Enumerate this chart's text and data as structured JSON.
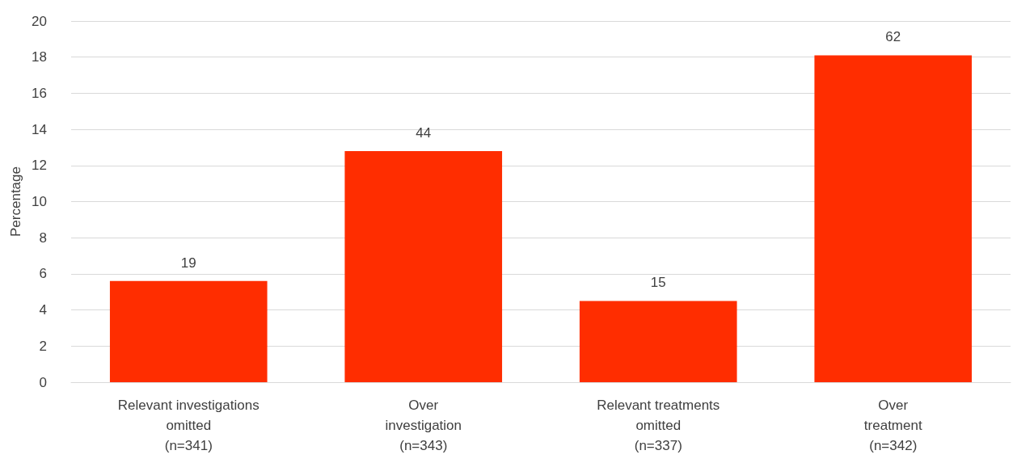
{
  "chart_data": {
    "type": "bar",
    "ylabel": "Percentage",
    "categories": [
      "Relevant investigations\nomitted\n(n=341)",
      "Over\ninvestigation\n(n=343)",
      "Relevant treatments\nomitted\n(n=337)",
      "Over\ntreatment\n(n=342)"
    ],
    "values": [
      5.6,
      12.8,
      4.5,
      18.1
    ],
    "color": "#ff2d00",
    "annotations": [
      {
        "text": "19",
        "x": "Relevant investigations\nomitted\n(n=341)",
        "y": 5.6
      },
      {
        "text": "44",
        "x": "Over\ninvestigation\n(n=343)",
        "y": 12.8
      },
      {
        "text": "15",
        "x": "Relevant treatments\nomitted\n(n=337)",
        "y": 4.5
      },
      {
        "text": "62",
        "x": "Over\ntreatment\n(n=342)",
        "y": 18.1
      }
    ],
    "ylim": [
      0,
      20
    ],
    "yticks": [
      0,
      2,
      4,
      6,
      8,
      10,
      12,
      14,
      16,
      18,
      20
    ],
    "grid": "y"
  }
}
